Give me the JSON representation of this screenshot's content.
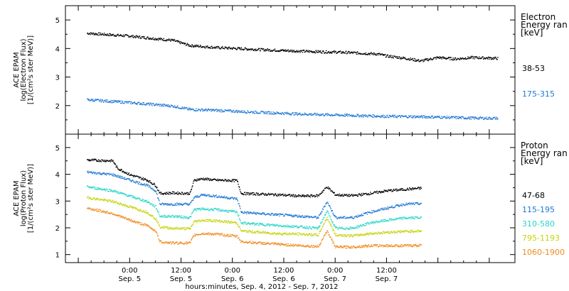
{
  "chart_data": [
    {
      "type": "scatter",
      "ylabel_lines": [
        "ACE EPAM",
        "log(Electron Flux)",
        "[1/(cm²s ster MeV)]"
      ],
      "ylim": [
        1.0,
        5.5
      ],
      "yticks": [
        2,
        3,
        4,
        5
      ],
      "legend_title": [
        "Electron",
        "Energy ran",
        "[keV]"
      ],
      "series": [
        {
          "name": "38-53",
          "color": "#000000",
          "x": [
            -10,
            0,
            10,
            14,
            20,
            30,
            40,
            50,
            58,
            60,
            64,
            68,
            72,
            76,
            80,
            86
          ],
          "y": [
            4.55,
            4.45,
            4.3,
            4.12,
            4.05,
            3.98,
            3.92,
            3.88,
            3.82,
            3.75,
            3.68,
            3.58,
            3.7,
            3.65,
            3.7,
            3.67
          ]
        },
        {
          "name": "175-315",
          "color": "#1f77d4",
          "x": [
            -10,
            0,
            10,
            14,
            20,
            30,
            40,
            50,
            60,
            70,
            80,
            86
          ],
          "y": [
            2.22,
            2.12,
            2.0,
            1.88,
            1.85,
            1.78,
            1.72,
            1.68,
            1.64,
            1.62,
            1.58,
            1.57
          ]
        }
      ]
    },
    {
      "type": "scatter",
      "ylabel_lines": [
        "ACE EPAM",
        "log(Proton Flux)",
        "[1/(cm²s ster MeV)]"
      ],
      "ylim": [
        0.7,
        5.5
      ],
      "yticks": [
        1,
        2,
        3,
        4,
        5
      ],
      "legend_title": [
        "Proton",
        "Energy ran",
        "[keV]"
      ],
      "xlabel": "hours:minutes, Sep.  4, 2012 - Sep.  7, 2012",
      "xlim": [
        -15,
        90
      ],
      "xticks": [
        {
          "x": 0,
          "time": "0:00",
          "day": "Sep. 5"
        },
        {
          "x": 12,
          "time": "12:00",
          "day": "Sep. 5"
        },
        {
          "x": 24,
          "time": "0:00",
          "day": "Sep. 6"
        },
        {
          "x": 36,
          "time": "12:00",
          "day": "Sep. 6"
        },
        {
          "x": 48,
          "time": "0:00",
          "day": "Sep. 7"
        },
        {
          "x": 60,
          "time": "12:00",
          "day": "Sep. 7"
        }
      ],
      "series": [
        {
          "name": "47-68",
          "color": "#000000",
          "x": [
            -10,
            -4,
            -3,
            0,
            4,
            6,
            7,
            10,
            14,
            15,
            17,
            20,
            25,
            26,
            30,
            35,
            40,
            44,
            46,
            48,
            52,
            56,
            60,
            64,
            68
          ],
          "y": [
            4.55,
            4.52,
            4.25,
            4.0,
            3.8,
            3.6,
            3.3,
            3.32,
            3.3,
            3.8,
            3.85,
            3.8,
            3.78,
            3.3,
            3.28,
            3.25,
            3.2,
            3.22,
            3.55,
            3.25,
            3.22,
            3.3,
            3.4,
            3.45,
            3.5
          ]
        },
        {
          "name": "115-195",
          "color": "#1f77d4",
          "x": [
            -10,
            -4,
            0,
            4,
            6,
            7,
            10,
            14,
            15,
            17,
            20,
            25,
            26,
            30,
            35,
            40,
            44,
            46,
            48,
            52,
            56,
            60,
            64,
            68
          ],
          "y": [
            4.1,
            4.0,
            3.8,
            3.6,
            3.4,
            2.9,
            2.9,
            2.9,
            3.15,
            3.25,
            3.2,
            3.1,
            2.6,
            2.55,
            2.5,
            2.45,
            2.4,
            3.0,
            2.4,
            2.4,
            2.6,
            2.75,
            2.9,
            2.92
          ]
        },
        {
          "name": "310-580",
          "color": "#28d6c8",
          "x": [
            -10,
            -4,
            0,
            4,
            6,
            7,
            10,
            14,
            15,
            17,
            20,
            25,
            26,
            30,
            35,
            40,
            44,
            46,
            48,
            52,
            56,
            60,
            64,
            68
          ],
          "y": [
            3.55,
            3.4,
            3.2,
            3.0,
            2.8,
            2.45,
            2.45,
            2.4,
            2.7,
            2.72,
            2.7,
            2.6,
            2.2,
            2.15,
            2.1,
            2.05,
            2.0,
            2.65,
            2.0,
            2.0,
            2.2,
            2.3,
            2.38,
            2.4
          ]
        },
        {
          "name": "795-1193",
          "color": "#c4d40a",
          "x": [
            -10,
            -4,
            0,
            4,
            6,
            7,
            10,
            14,
            15,
            17,
            20,
            25,
            26,
            30,
            35,
            40,
            44,
            46,
            48,
            52,
            56,
            60,
            64,
            68
          ],
          "y": [
            3.15,
            3.0,
            2.8,
            2.6,
            2.35,
            2.05,
            2.0,
            1.98,
            2.25,
            2.3,
            2.28,
            2.2,
            1.9,
            1.85,
            1.8,
            1.78,
            1.75,
            2.4,
            1.75,
            1.72,
            1.8,
            1.85,
            1.88,
            1.9
          ]
        },
        {
          "name": "1060-1900",
          "color": "#f08a1c",
          "x": [
            -10,
            -4,
            0,
            4,
            6,
            7,
            10,
            14,
            15,
            17,
            20,
            25,
            26,
            30,
            35,
            40,
            44,
            46,
            48,
            52,
            56,
            60,
            64,
            68
          ],
          "y": [
            2.75,
            2.55,
            2.3,
            2.1,
            1.9,
            1.5,
            1.45,
            1.45,
            1.75,
            1.8,
            1.78,
            1.7,
            1.5,
            1.45,
            1.4,
            1.35,
            1.32,
            1.9,
            1.3,
            1.3,
            1.35,
            1.35,
            1.35,
            1.36
          ]
        }
      ]
    }
  ]
}
